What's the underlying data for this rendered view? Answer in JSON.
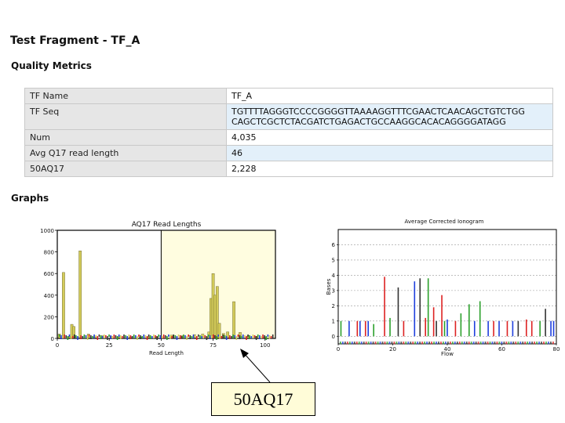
{
  "page": {
    "title": "Test Fragment - TF_A",
    "metrics_heading": "Quality Metrics",
    "graphs_heading": "Graphs"
  },
  "metrics": [
    {
      "key": "TF Name",
      "value": "TF_A"
    },
    {
      "key": "TF Seq",
      "value": "TGTTTTAGGGTCCCCGGGGTTAAAAGGTTTCGAACTCAACAGCTGTCTGG",
      "value2": "CAGCTCGCTCTACGATCTGAGACTGCCAAGGCACACAGGGGATAGG"
    },
    {
      "key": "Num",
      "value": "4,035"
    },
    {
      "key": "Avg Q17 read length",
      "value": "46"
    },
    {
      "key": "50AQ17",
      "value": "2,228"
    }
  ],
  "callout": {
    "label": "50AQ17"
  },
  "chart_data": [
    {
      "type": "bar",
      "title": "AQ17 Read Lengths",
      "xlabel": "Read Length",
      "ylabel": "",
      "xlim": [
        0,
        105
      ],
      "ylim": [
        0,
        1000
      ],
      "xticks": [
        "0",
        "25",
        "50",
        "75",
        "100"
      ],
      "yticks": [
        "0",
        "200",
        "400",
        "600",
        "800",
        "1000"
      ],
      "highlight_range": [
        50,
        104
      ],
      "bar_color": "#d4cc5a",
      "highlight_color": "#fffde0",
      "x": [
        1,
        3,
        6,
        7,
        8,
        11,
        15,
        18,
        22,
        26,
        30,
        35,
        40,
        44,
        48,
        55,
        60,
        66,
        70,
        73,
        74,
        75,
        76,
        77,
        78,
        80,
        82,
        85,
        88,
        92,
        96,
        100
      ],
      "values": [
        40,
        610,
        20,
        130,
        110,
        810,
        40,
        15,
        25,
        20,
        18,
        15,
        12,
        15,
        15,
        30,
        25,
        35,
        40,
        60,
        370,
        600,
        400,
        480,
        140,
        45,
        60,
        340,
        55,
        25,
        20,
        10
      ]
    },
    {
      "type": "bar",
      "title": "Average Corrected Ionogram",
      "xlabel": "Flow",
      "ylabel": "Bases",
      "xlim": [
        0,
        80
      ],
      "ylim": [
        -0.5,
        7
      ],
      "xticks": [
        "0",
        "20",
        "40",
        "60",
        "80"
      ],
      "yticks": [
        "0",
        "1",
        "2",
        "3",
        "4",
        "5",
        "6"
      ],
      "grid": true,
      "flows": [
        1,
        4,
        7,
        8,
        10,
        11,
        13,
        17,
        19,
        22,
        24,
        28,
        30,
        32,
        33,
        35,
        36,
        38,
        39,
        40,
        43,
        45,
        48,
        50,
        52,
        55,
        57,
        59,
        62,
        64,
        66,
        69,
        71,
        74,
        76,
        78,
        79
      ],
      "values": [
        1,
        1,
        1,
        1,
        1,
        1,
        0.8,
        3.9,
        1.2,
        3.2,
        1,
        3.6,
        3.8,
        1.2,
        3.8,
        1.9,
        1,
        2.7,
        1,
        1.1,
        1,
        1.5,
        2.1,
        1,
        2.3,
        1,
        1,
        1,
        1,
        1,
        1,
        1.1,
        1,
        1,
        1.8,
        1,
        1
      ],
      "colors": [
        "#2ca02c",
        "#1f3fdd",
        "#dd2222",
        "#1f3fdd",
        "#dd2222",
        "#1f3fdd",
        "#2ca02c",
        "#dd2222",
        "#2ca02c",
        "#333333",
        "#dd2222",
        "#1f3fdd",
        "#333333",
        "#dd2222",
        "#2ca02c",
        "#dd2222",
        "#333333",
        "#dd2222",
        "#2ca02c",
        "#1f3fdd",
        "#dd2222",
        "#2ca02c",
        "#2ca02c",
        "#1f3fdd",
        "#2ca02c",
        "#1f3fdd",
        "#dd2222",
        "#1f3fdd",
        "#dd2222",
        "#1f3fdd",
        "#333333",
        "#dd2222",
        "#dd2222",
        "#2ca02c",
        "#333333",
        "#1f3fdd",
        "#1f3fdd"
      ]
    }
  ]
}
